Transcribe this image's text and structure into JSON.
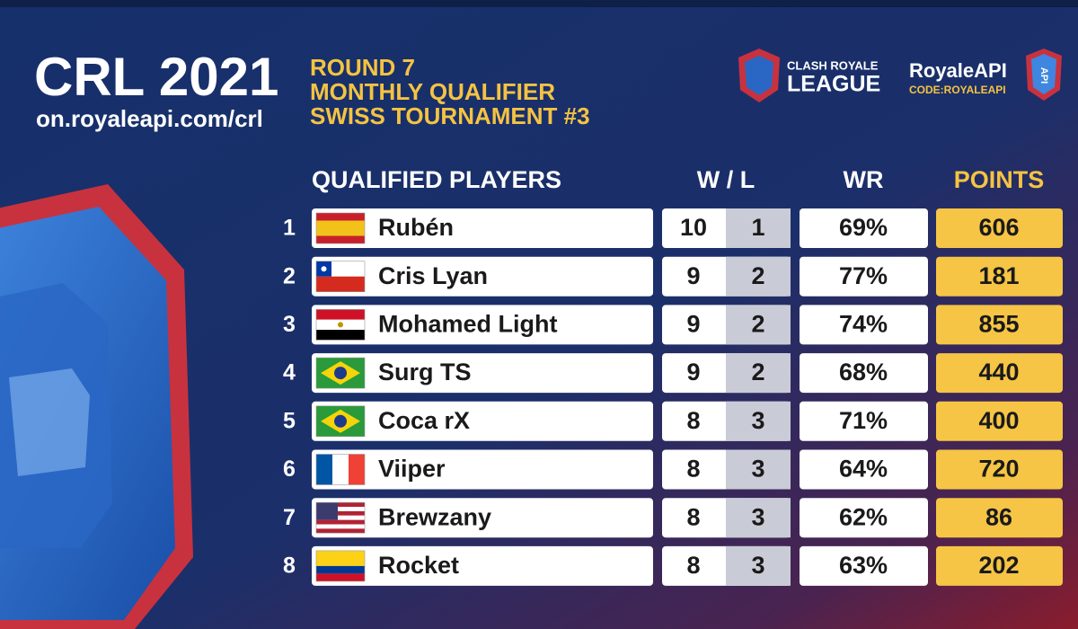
{
  "header": {
    "title": "CRL 2021",
    "url": "on.royaleapi.com/crl",
    "lines": [
      "ROUND 7",
      "MONTHLY QUALIFIER",
      "SWISS TOURNAMENT #3"
    ]
  },
  "logos": {
    "league_top": "CLASH ROYALE",
    "league_bottom": "LEAGUE",
    "api_name": "RoyaleAPI",
    "api_code": "CODE:ROYALEAPI",
    "api_badge": "API"
  },
  "table": {
    "columns": [
      "QUALIFIED PLAYERS",
      "W / L",
      "WR",
      "POINTS"
    ],
    "rows": [
      {
        "rank": 1,
        "name": "Rubén",
        "wins": 10,
        "losses": 1,
        "wr": "69%",
        "points": 606
      },
      {
        "rank": 2,
        "name": "Cris Lyan",
        "wins": 9,
        "losses": 2,
        "wr": "77%",
        "points": 181
      },
      {
        "rank": 3,
        "name": "Mohamed Light",
        "wins": 9,
        "losses": 2,
        "wr": "74%",
        "points": 855
      },
      {
        "rank": 4,
        "name": "Surg TS",
        "wins": 9,
        "losses": 2,
        "wr": "68%",
        "points": 440
      },
      {
        "rank": 5,
        "name": "Coca rX",
        "wins": 8,
        "losses": 3,
        "wr": "71%",
        "points": 400
      },
      {
        "rank": 6,
        "name": "Viiper",
        "wins": 8,
        "losses": 3,
        "wr": "64%",
        "points": 720
      },
      {
        "rank": 7,
        "name": "Brewzany",
        "wins": 8,
        "losses": 3,
        "wr": "62%",
        "points": 86
      },
      {
        "rank": 8,
        "name": "Rocket",
        "wins": 8,
        "losses": 3,
        "wr": "63%",
        "points": 202
      }
    ]
  }
}
